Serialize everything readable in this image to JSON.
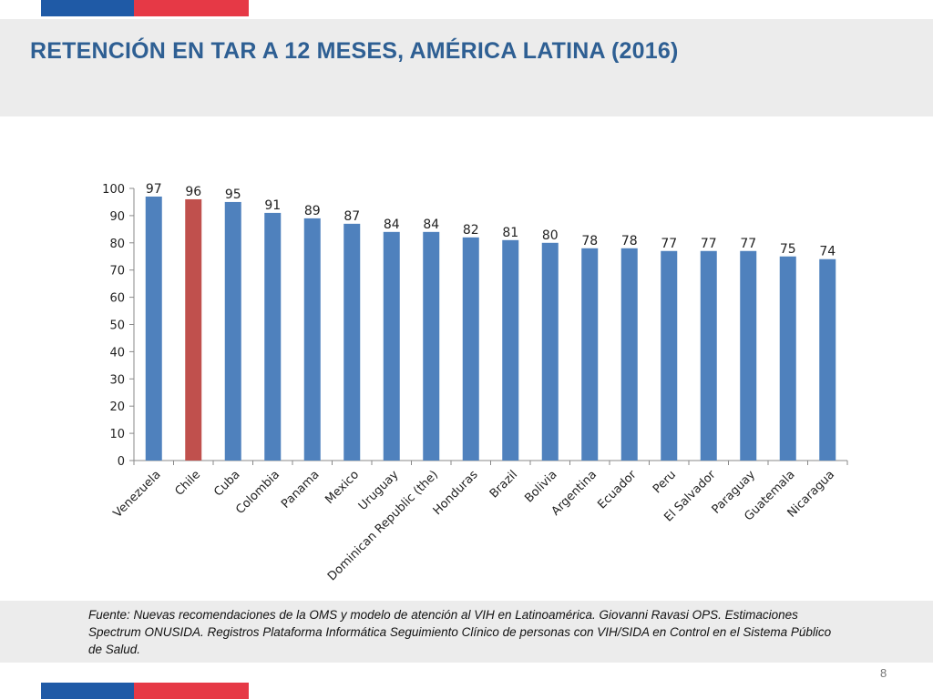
{
  "title": "RETENCIÓN EN TAR A 12 MESES, AMÉRICA LATINA (2016)",
  "source": "Fuente: Nuevas recomendaciones de la OMS y modelo de atención al VIH en Latinoamérica. Giovanni Ravasi OPS. Estimaciones Spectrum ONUSIDA. Registros Plataforma Informática Seguimiento Clínico de personas con VIH/SIDA en Control en el Sistema Público de Salud.",
  "page_number": "8",
  "colors": {
    "bar": "#4f81bd",
    "highlight": "#c0504d",
    "title": "#2e5f93",
    "flag_blue": "#1f5aa6",
    "flag_red": "#e63946"
  },
  "chart_data": {
    "type": "bar",
    "categories": [
      "Venezuela",
      "Chile",
      "Cuba",
      "Colombia",
      "Panama",
      "Mexico",
      "Uruguay",
      "Dominican Republic (the)",
      "Honduras",
      "Brazil",
      "Bolivia",
      "Argentina",
      "Ecuador",
      "Peru",
      "El Salvador",
      "Paraguay",
      "Guatemala",
      "Nicaragua"
    ],
    "values": [
      97,
      96,
      95,
      91,
      89,
      87,
      84,
      84,
      82,
      81,
      80,
      78,
      78,
      77,
      77,
      77,
      75,
      74
    ],
    "data_labels": [
      "97",
      "96",
      "95",
      "91",
      "89",
      "87",
      "84",
      "84",
      "82",
      "81",
      "80",
      "78",
      "78",
      "77",
      "77",
      "77",
      "75",
      "74"
    ],
    "highlight_category": "Chile",
    "ylim": [
      0,
      100
    ],
    "yticks": [
      0,
      10,
      20,
      30,
      40,
      50,
      60,
      70,
      80,
      90,
      100
    ],
    "grid": false,
    "legend": "none"
  }
}
